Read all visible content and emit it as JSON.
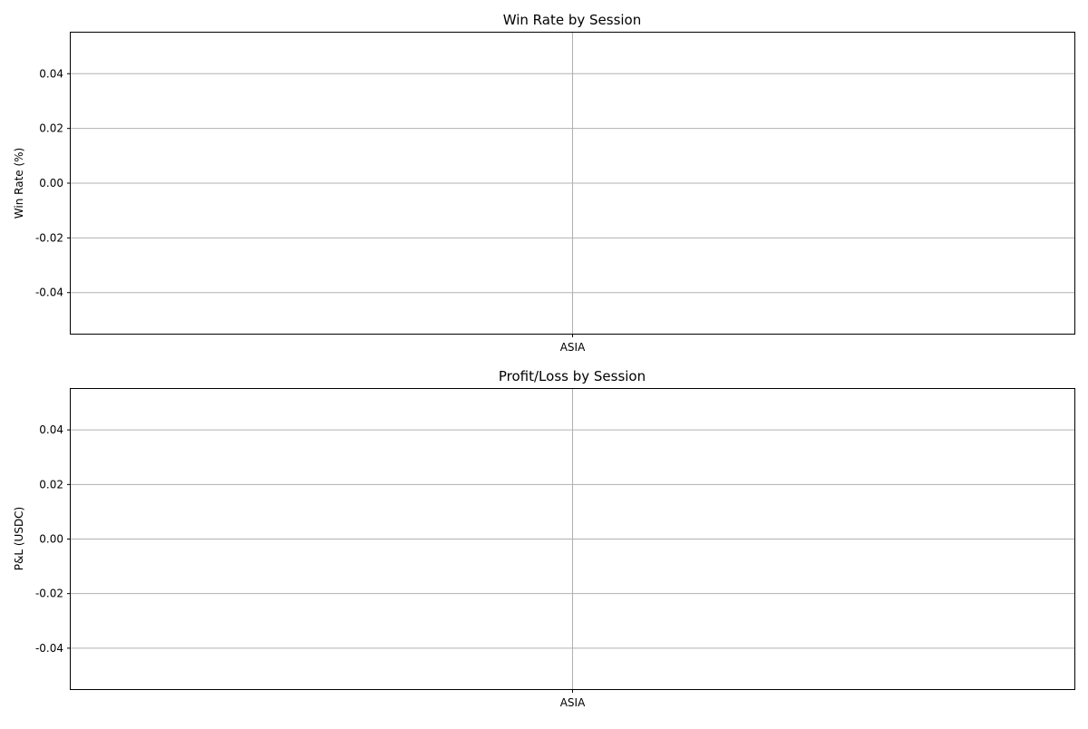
{
  "chart_data": [
    {
      "type": "bar",
      "title": "Win Rate by Session",
      "xlabel": "",
      "ylabel": "Win Rate (%)",
      "categories": [
        "ASIA"
      ],
      "series": [
        {
          "values": [
            0
          ]
        }
      ],
      "ylim": [
        -0.055,
        0.055
      ],
      "yticks": [
        "0.04",
        "0.02",
        "0.00",
        "-0.02",
        "-0.04"
      ],
      "grid": true
    },
    {
      "type": "bar",
      "title": "Profit/Loss by Session",
      "xlabel": "",
      "ylabel": "P&L (USDC)",
      "categories": [
        "ASIA"
      ],
      "series": [
        {
          "values": [
            0
          ]
        }
      ],
      "ylim": [
        -0.055,
        0.055
      ],
      "yticks": [
        "0.04",
        "0.02",
        "0.00",
        "-0.02",
        "-0.04"
      ],
      "grid": true
    }
  ],
  "colors": {
    "grid": "#b0b0b0",
    "axis": "#000000"
  }
}
